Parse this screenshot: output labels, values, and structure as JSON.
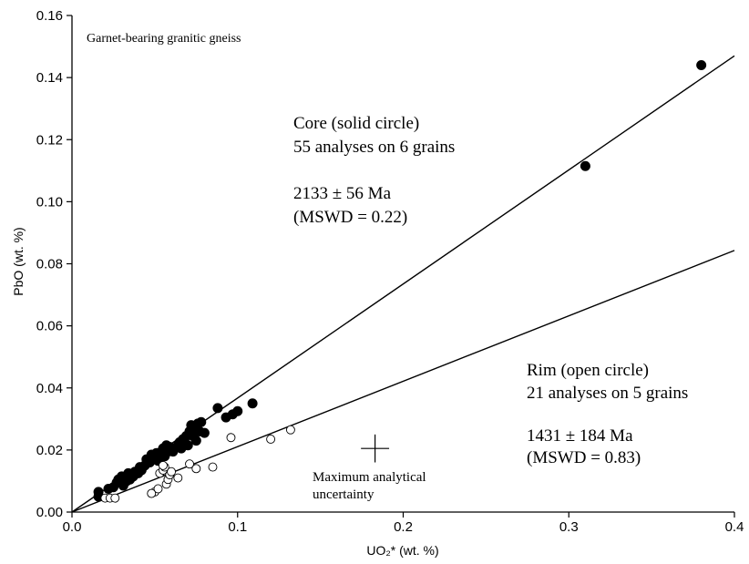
{
  "chart_data": {
    "type": "scatter",
    "title": "Garnet-bearing granitic gneiss",
    "xlabel": "UO₂* (wt. %)",
    "ylabel": "PbO (wt. %)",
    "xlim": [
      0,
      0.4
    ],
    "ylim": [
      0,
      0.16
    ],
    "x_ticks": [
      0,
      0.1,
      0.2,
      0.3,
      0.4
    ],
    "x_tick_labels": [
      "0.0",
      "0.1",
      "0.2",
      "0.3",
      "0.4"
    ],
    "y_ticks": [
      0,
      0.02,
      0.04,
      0.06,
      0.08,
      0.1,
      0.12,
      0.14,
      0.16
    ],
    "y_tick_labels": [
      "0.00",
      "0.02",
      "0.04",
      "0.06",
      "0.08",
      "0.10",
      "0.12",
      "0.14",
      "0.16"
    ],
    "grid": false,
    "series": [
      {
        "marker": "filled-circle",
        "points": [
          [
            0.016,
            0.005
          ],
          [
            0.016,
            0.0065
          ],
          [
            0.022,
            0.0075
          ],
          [
            0.025,
            0.008
          ],
          [
            0.027,
            0.0095
          ],
          [
            0.028,
            0.0105
          ],
          [
            0.03,
            0.0115
          ],
          [
            0.031,
            0.0085
          ],
          [
            0.033,
            0.01
          ],
          [
            0.034,
            0.0125
          ],
          [
            0.035,
            0.0105
          ],
          [
            0.037,
            0.0115
          ],
          [
            0.038,
            0.013
          ],
          [
            0.04,
            0.0125
          ],
          [
            0.041,
            0.0145
          ],
          [
            0.042,
            0.0135
          ],
          [
            0.044,
            0.015
          ],
          [
            0.045,
            0.017
          ],
          [
            0.047,
            0.016
          ],
          [
            0.048,
            0.0185
          ],
          [
            0.049,
            0.0175
          ],
          [
            0.051,
            0.019
          ],
          [
            0.052,
            0.0165
          ],
          [
            0.053,
            0.018
          ],
          [
            0.054,
            0.0195
          ],
          [
            0.055,
            0.0205
          ],
          [
            0.056,
            0.018
          ],
          [
            0.057,
            0.0215
          ],
          [
            0.058,
            0.0195
          ],
          [
            0.059,
            0.021
          ],
          [
            0.061,
            0.0195
          ],
          [
            0.062,
            0.0205
          ],
          [
            0.064,
            0.0215
          ],
          [
            0.065,
            0.0225
          ],
          [
            0.066,
            0.0205
          ],
          [
            0.067,
            0.0235
          ],
          [
            0.068,
            0.0225
          ],
          [
            0.069,
            0.0245
          ],
          [
            0.07,
            0.0215
          ],
          [
            0.071,
            0.026
          ],
          [
            0.072,
            0.028
          ],
          [
            0.073,
            0.0245
          ],
          [
            0.074,
            0.027
          ],
          [
            0.075,
            0.023
          ],
          [
            0.076,
            0.0285
          ],
          [
            0.077,
            0.026
          ],
          [
            0.078,
            0.029
          ],
          [
            0.08,
            0.0255
          ],
          [
            0.088,
            0.0335
          ],
          [
            0.093,
            0.0305
          ],
          [
            0.097,
            0.0315
          ],
          [
            0.1,
            0.0325
          ],
          [
            0.109,
            0.035
          ],
          [
            0.31,
            0.1115
          ],
          [
            0.38,
            0.144
          ]
        ]
      },
      {
        "marker": "open-circle",
        "points": [
          [
            0.02,
            0.0045
          ],
          [
            0.023,
            0.0045
          ],
          [
            0.026,
            0.0045
          ],
          [
            0.05,
            0.0065
          ],
          [
            0.052,
            0.0075
          ],
          [
            0.053,
            0.0125
          ],
          [
            0.055,
            0.0135
          ],
          [
            0.056,
            0.0145
          ],
          [
            0.057,
            0.009
          ],
          [
            0.058,
            0.0105
          ],
          [
            0.059,
            0.012
          ],
          [
            0.064,
            0.011
          ],
          [
            0.071,
            0.0155
          ],
          [
            0.075,
            0.014
          ],
          [
            0.085,
            0.0145
          ],
          [
            0.096,
            0.024
          ],
          [
            0.12,
            0.0235
          ],
          [
            0.132,
            0.0265
          ],
          [
            0.055,
            0.015
          ],
          [
            0.048,
            0.006
          ],
          [
            0.06,
            0.013
          ]
        ]
      }
    ],
    "fit_lines": [
      {
        "from": [
          0.0,
          0.0
        ],
        "to": [
          0.4,
          0.147
        ]
      },
      {
        "from": [
          0.0,
          0.0
        ],
        "to": [
          0.4,
          0.0843
        ]
      }
    ],
    "error_cross": {
      "center": [
        0.183,
        0.0205
      ],
      "x_half": 0.0085,
      "y_half": 0.0045
    },
    "annotations": {
      "core_line1": "Core (solid circle)",
      "core_line2": "55 analyses on 6 grains",
      "core_age": "2133 ± 56 Ma",
      "core_mswd": "(MSWD = 0.22)",
      "rim_line1": "Rim (open circle)",
      "rim_line2": "21 analyses on 5 grains",
      "rim_age": "1431 ± 184 Ma",
      "rim_mswd": "(MSWD = 0.83)",
      "uncert_line1": "Maximum analytical",
      "uncert_line2": "uncertainty"
    }
  }
}
